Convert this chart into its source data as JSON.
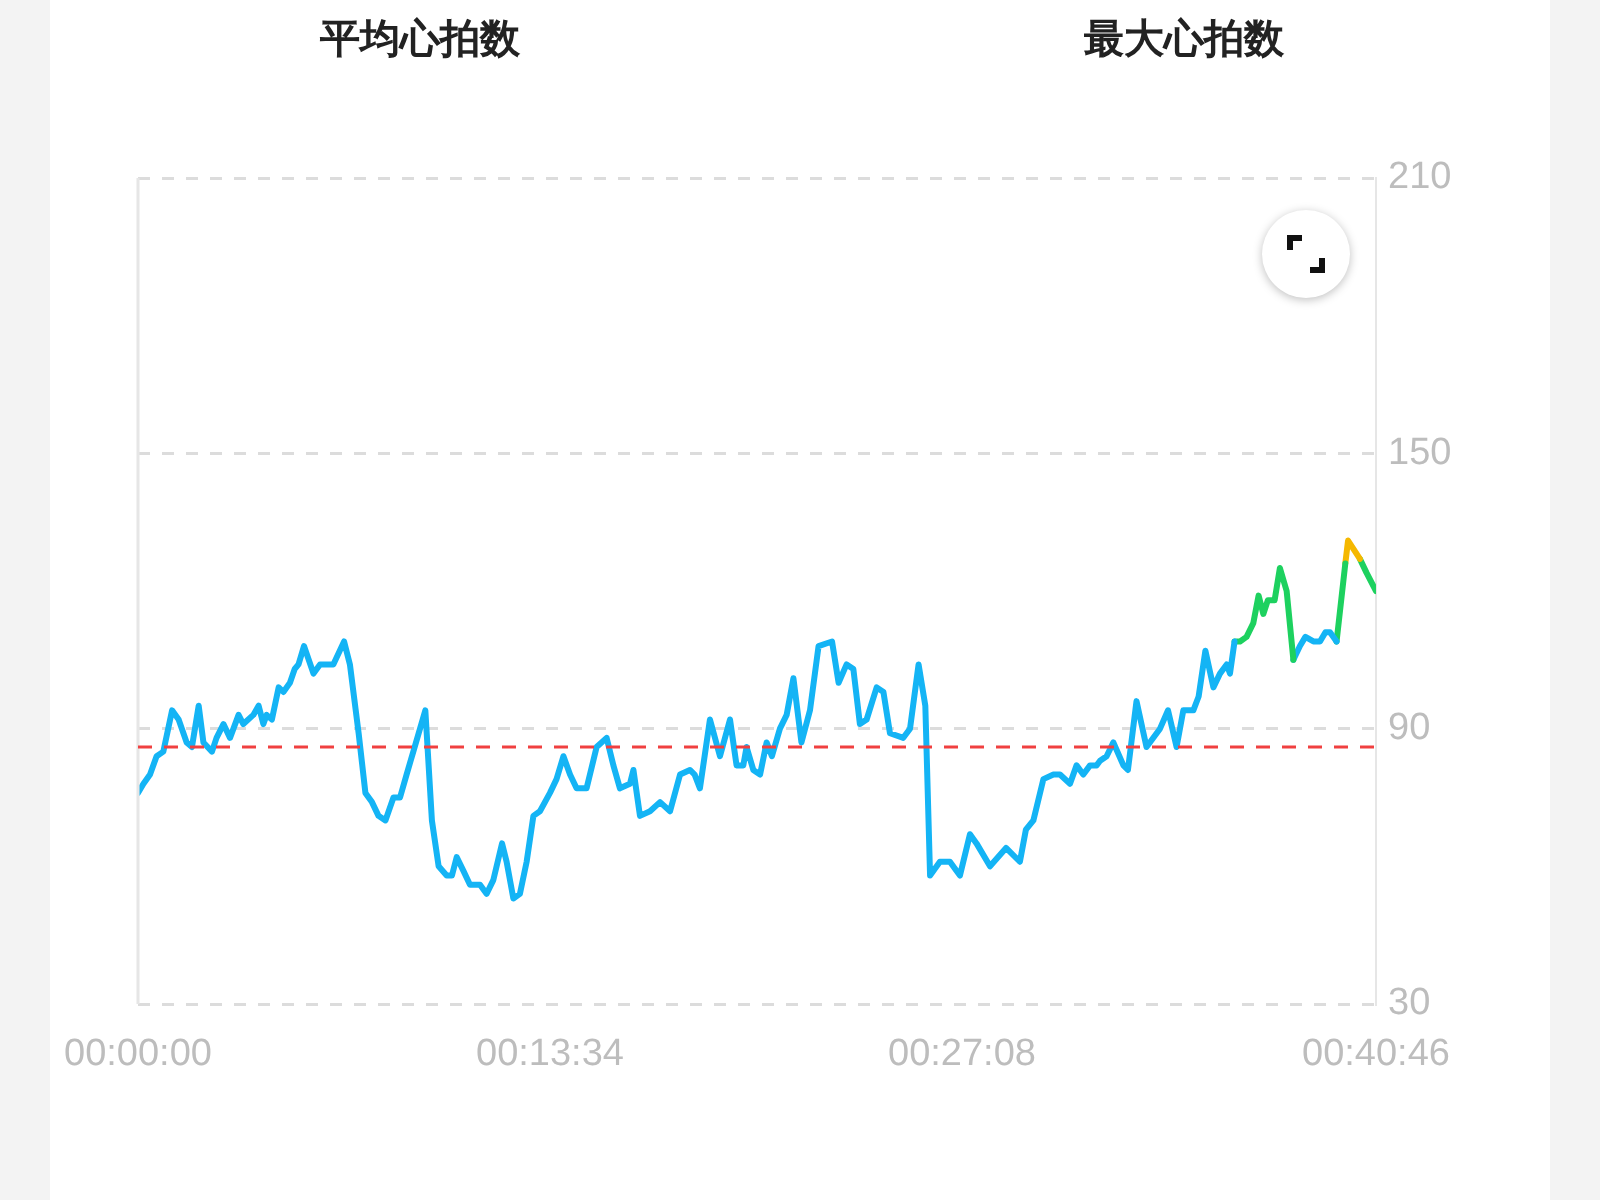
{
  "chart_data": {
    "type": "line",
    "annotations": [
      "平均心拍数",
      "最大心拍数"
    ],
    "xlim": [
      0,
      0.67944
    ],
    "xticks": [
      {
        "value": 0,
        "label": "00:00:00"
      },
      {
        "value": 0.22611,
        "label": "00:13:34"
      },
      {
        "value": 0.45222,
        "label": "00:27:08"
      },
      {
        "value": 0.67944,
        "label": "00:40:46"
      }
    ],
    "ylim": [
      30,
      210
    ],
    "yticks": [
      30,
      90,
      150,
      210
    ],
    "grid": "y",
    "ref_lines": [
      {
        "axis": "y",
        "value": 86,
        "color": "#f04040",
        "line_style": "dashed"
      }
    ],
    "series": [
      {
        "color": "#14b4f5",
        "x": [
          0,
          0.003,
          0.0066,
          0.0102,
          0.0139,
          0.0187,
          0.0223,
          0.0267,
          0.0296,
          0.0333,
          0.0359,
          0.0406,
          0.0431,
          0.0469,
          0.0505,
          0.0552,
          0.0578,
          0.0633,
          0.0662,
          0.0688,
          0.0706,
          0.0735,
          0.0772,
          0.0798,
          0.0834,
          0.086,
          0.0881,
          0.0911,
          0.0963,
          0.0999,
          0.1035,
          0.1072,
          0.1131,
          0.1163,
          0.1211,
          0.1248,
          0.1284,
          0.132,
          0.1358,
          0.1402,
          0.1438,
          0.1474,
          0.1511,
          0.1577,
          0.1613,
          0.165,
          0.1694,
          0.1723,
          0.1749,
          0.1786,
          0.1822,
          0.1877,
          0.1913,
          0.195,
          0.1998,
          0.2023,
          0.206,
          0.2096,
          0.2133,
          0.217,
          0.2206,
          0.2261,
          0.2297,
          0.2335,
          0.2371,
          0.2407,
          0.2462,
          0.2517,
          0.2572,
          0.2609,
          0.2645,
          0.27,
          0.2719,
          0.2755,
          0.281,
          0.2865,
          0.292,
          0.2975,
          0.3029,
          0.3055,
          0.3084,
          0.3139,
          0.3194,
          0.3249,
          0.3285,
          0.3322,
          0.334,
          0.3377,
          0.3414,
          0.345,
          0.3479,
          0.3523,
          0.356,
          0.3597,
          0.3641,
          0.3688,
          0.3735,
          0.3809,
          0.3845,
          0.3889,
          0.3926,
          0.3962,
          0.3999,
          0.4054,
          0.4091,
          0.4127,
          0.42,
          0.4237,
          0.4284,
          0.4321,
          0.4347,
          0.4401,
          0.4456,
          0.4511,
          0.4566,
          0.4602,
          0.4676,
          0.4764,
          0.484,
          0.4873,
          0.4914,
          0.4969,
          0.5024,
          0.506,
          0.5115,
          0.5151,
          0.5188,
          0.5225,
          0.5261,
          0.528,
          0.5316,
          0.5353,
          0.5408,
          0.5433,
          0.548,
          0.5535,
          0.5609,
          0.5653,
          0.57,
          0.5737,
          0.5792,
          0.5821,
          0.5858,
          0.5902,
          0.5938,
          0.5975,
          0.5993,
          0.6018
        ],
        "values": [
          76,
          78,
          80,
          84,
          85,
          94,
          92,
          87,
          86,
          95,
          87,
          85,
          88,
          91,
          88,
          93,
          91,
          93,
          95,
          91,
          93,
          92,
          99,
          98,
          100,
          103,
          104,
          108,
          102,
          104,
          104,
          104,
          109,
          104,
          89,
          76,
          74,
          71,
          70,
          75,
          75,
          80,
          85,
          94,
          70,
          60,
          58,
          58,
          62,
          59,
          56,
          56,
          54,
          57,
          65,
          61,
          53,
          54,
          61,
          71,
          72,
          76,
          79,
          84,
          80,
          77,
          77,
          86,
          88,
          82,
          77,
          78,
          81,
          71,
          72,
          74,
          72,
          80,
          81,
          80,
          77,
          92,
          84,
          92,
          82,
          82,
          86,
          81,
          80,
          87,
          84,
          90,
          93,
          101,
          87,
          94,
          108,
          109,
          100,
          104,
          103,
          91,
          92,
          99,
          98,
          89,
          88,
          90,
          104,
          95,
          58,
          61,
          61,
          58,
          67,
          65,
          60,
          64,
          61,
          68,
          70,
          79,
          80,
          80,
          78,
          82,
          80,
          82,
          82,
          83,
          84,
          87,
          82,
          81,
          96,
          86,
          90,
          94,
          86,
          94,
          94,
          97,
          107,
          99,
          102,
          104,
          102,
          109
        ]
      },
      {
        "color": "#1dd15f",
        "x": [
          0.6018,
          0.6048,
          0.6084,
          0.6121,
          0.615,
          0.6176,
          0.6201,
          0.6238,
          0.6267,
          0.6304,
          0.6341
        ],
        "values": [
          109,
          109,
          110,
          113,
          119,
          115,
          118,
          118,
          125,
          120,
          105
        ]
      },
      {
        "color": "#14b4f5",
        "x": [
          0.6341,
          0.6377,
          0.6407,
          0.6451,
          0.6487,
          0.6517,
          0.6542,
          0.6578
        ],
        "values": [
          105,
          108,
          110,
          109,
          109,
          111,
          111,
          109
        ]
      },
      {
        "color": "#1dd15f",
        "x": [
          0.6578,
          0.6626
        ],
        "values": [
          109,
          126
        ]
      },
      {
        "color": "#f5b800",
        "x": [
          0.6626,
          0.6641,
          0.6706
        ],
        "values": [
          126,
          131,
          127
        ]
      },
      {
        "color": "#1dd15f",
        "x": [
          0.6706,
          0.6742,
          0.67944
        ],
        "values": [
          127,
          124,
          120
        ]
      }
    ]
  }
}
